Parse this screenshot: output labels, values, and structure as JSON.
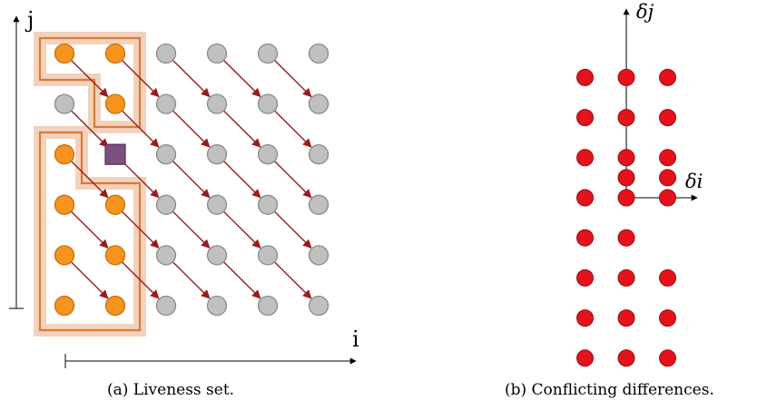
{
  "panel_a": {
    "x_axis_label": "i",
    "y_axis_label": "j",
    "caption": "(a) Liveness set.",
    "grid_cols": 6,
    "grid_rows": 6,
    "live_points": [
      [
        0,
        5
      ],
      [
        1,
        5
      ],
      [
        1,
        4
      ],
      [
        0,
        3
      ],
      [
        0,
        2
      ],
      [
        1,
        2
      ],
      [
        0,
        1
      ],
      [
        1,
        1
      ],
      [
        0,
        0
      ],
      [
        1,
        0
      ]
    ],
    "special_point": [
      1,
      3
    ],
    "arrow_direction": [
      1,
      -1
    ],
    "colors": {
      "live_fill": "#F7941D",
      "live_stroke": "#C86E10",
      "dead_fill": "#C0C0C0",
      "dead_stroke": "#8A8A8A",
      "special_fill": "#7B4F7E",
      "special_stroke": "#5A3460",
      "arrow": "#9B1B1B",
      "region_outline": "#D87A3A",
      "region_fill": "#F3D2BC"
    }
  },
  "panel_b": {
    "x_axis_label": "δi",
    "y_axis_label": "δj",
    "caption": "(b) Conflicting differences.",
    "points": [
      [
        -1,
        3
      ],
      [
        0,
        3
      ],
      [
        1,
        3
      ],
      [
        -1,
        2
      ],
      [
        0,
        2
      ],
      [
        1,
        2
      ],
      [
        -1,
        1
      ],
      [
        0,
        1
      ],
      [
        1,
        1
      ],
      [
        0,
        0.5
      ],
      [
        1,
        0.5
      ],
      [
        -1,
        0
      ],
      [
        0,
        0
      ],
      [
        1,
        0
      ],
      [
        -1,
        -1
      ],
      [
        0,
        -1
      ],
      [
        -1,
        -2
      ],
      [
        0,
        -2
      ],
      [
        1,
        -2
      ],
      [
        -1,
        -3
      ],
      [
        0,
        -3
      ],
      [
        1,
        -3
      ],
      [
        -1,
        -4
      ],
      [
        0,
        -4
      ],
      [
        1,
        -4
      ]
    ],
    "colors": {
      "point_fill": "#E3121B",
      "point_stroke": "#A00A10"
    }
  }
}
